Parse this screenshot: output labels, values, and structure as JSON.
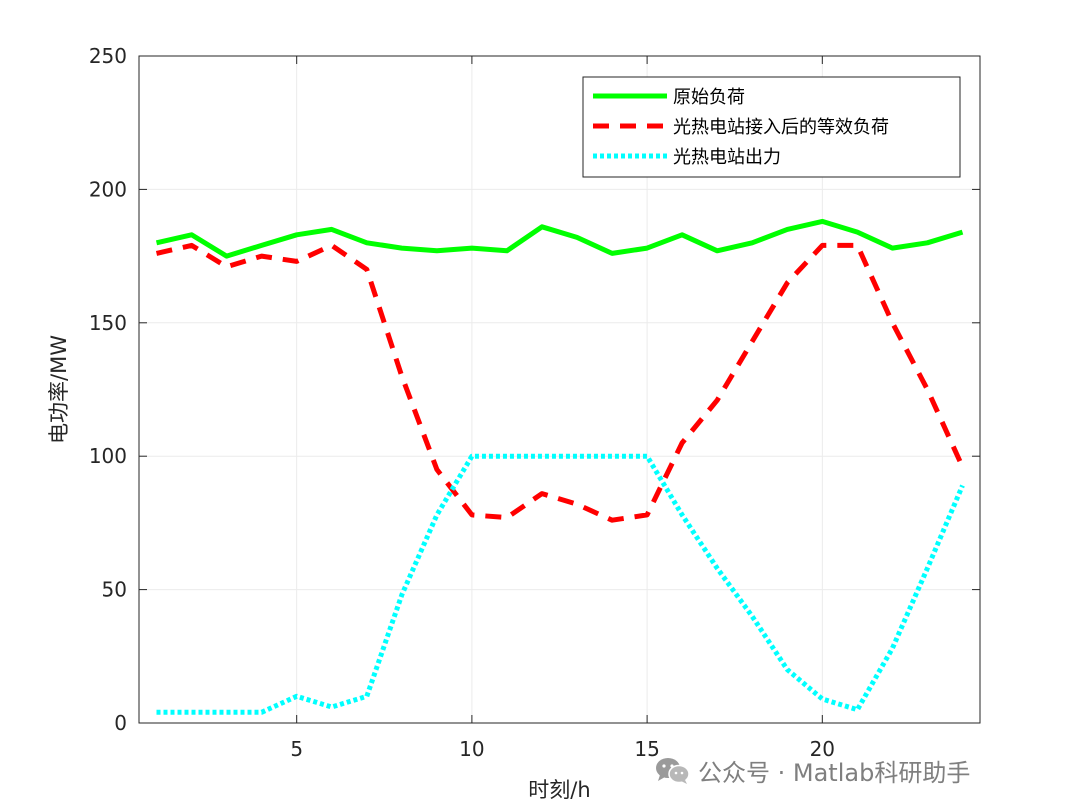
{
  "chart_data": {
    "type": "line",
    "title": "",
    "xlabel": "时刻/h",
    "ylabel": "电功率/MW",
    "xlim": [
      0.5,
      24.5
    ],
    "ylim": [
      0,
      250
    ],
    "xticks": [
      5,
      10,
      15,
      20
    ],
    "yticks": [
      0,
      50,
      100,
      150,
      200,
      250
    ],
    "grid": true,
    "legend_position": "top-right",
    "x": [
      1,
      2,
      3,
      4,
      5,
      6,
      7,
      8,
      9,
      10,
      11,
      12,
      13,
      14,
      15,
      16,
      17,
      18,
      19,
      20,
      21,
      22,
      23,
      24
    ],
    "series": [
      {
        "name": "原始负荷",
        "color": "#00ff00",
        "style": "solid",
        "values": [
          180,
          183,
          175,
          179,
          183,
          185,
          180,
          178,
          177,
          178,
          177,
          186,
          182,
          176,
          178,
          183,
          177,
          180,
          185,
          188,
          184,
          178,
          180,
          184
        ]
      },
      {
        "name": "光热电站接入后的等效负荷",
        "color": "#ff0000",
        "style": "dashed",
        "values": [
          176,
          179,
          171,
          175,
          173,
          179,
          170,
          130,
          95,
          78,
          77,
          86,
          82,
          76,
          78,
          105,
          121,
          143,
          165,
          179,
          179,
          150,
          125,
          96
        ]
      },
      {
        "name": "光热电站出力",
        "color": "#00ffff",
        "style": "dotted",
        "values": [
          4,
          4,
          4,
          4,
          10,
          6,
          10,
          48,
          78,
          100,
          100,
          100,
          100,
          100,
          100,
          78,
          58,
          40,
          20,
          9,
          5,
          28,
          58,
          89
        ]
      }
    ]
  },
  "watermark": {
    "text": "公众号 · Matlab科研助手",
    "icon": "wechat-icon"
  }
}
